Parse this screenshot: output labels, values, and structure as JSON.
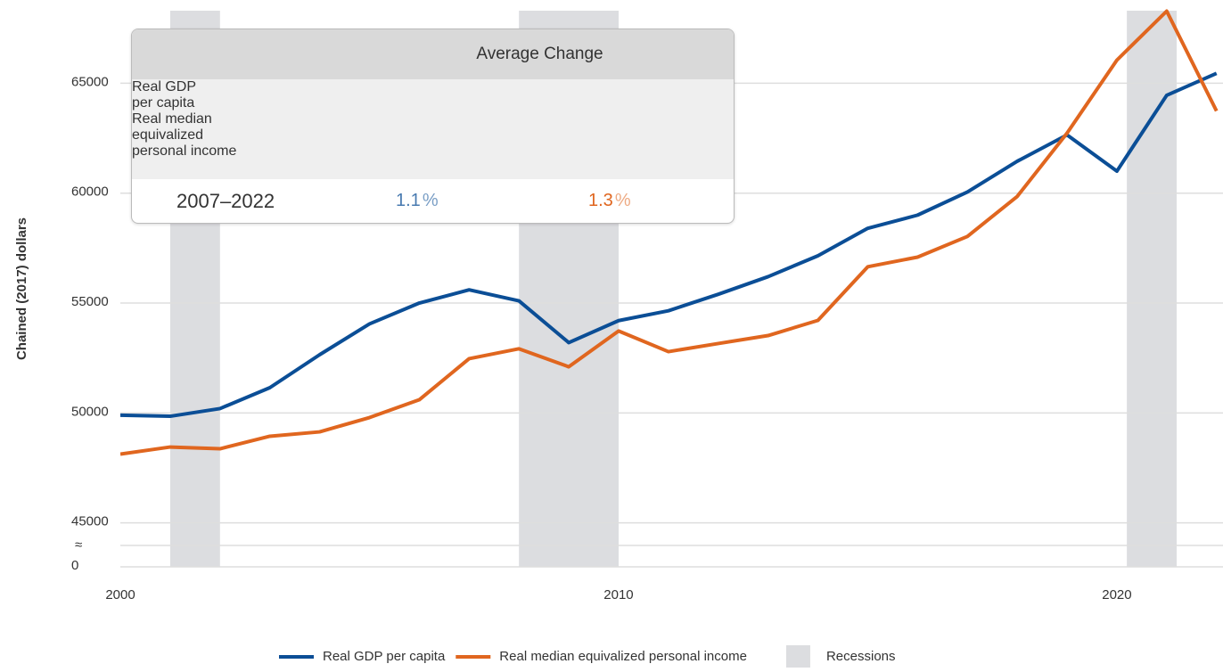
{
  "chart_data": {
    "type": "line",
    "y_label": "Chained (2017) dollars",
    "x": [
      2000,
      2001,
      2002,
      2003,
      2004,
      2005,
      2006,
      2007,
      2008,
      2009,
      2010,
      2011,
      2012,
      2013,
      2014,
      2015,
      2016,
      2017,
      2018,
      2019,
      2020,
      2021,
      2022
    ],
    "series": [
      {
        "name": "Real GDP per capita",
        "color": "#0b4e96",
        "values": [
          49900,
          49850,
          50200,
          51150,
          52650,
          54050,
          55000,
          55600,
          55100,
          53200,
          54200,
          54650,
          55400,
          56200,
          57150,
          58400,
          59000,
          60050,
          61450,
          62650,
          61000,
          64450,
          65450
        ]
      },
      {
        "name": "Real median equivalized personal income",
        "color": "#e0661f",
        "values": [
          48130,
          48450,
          48370,
          48940,
          49140,
          49790,
          50600,
          52470,
          52920,
          52100,
          53730,
          52790,
          53160,
          53520,
          54210,
          56650,
          57090,
          58030,
          59850,
          62730,
          66050,
          68280,
          63740
        ]
      }
    ],
    "recessions": [
      [
        2001,
        2002
      ],
      [
        2008,
        2010
      ],
      [
        2020.2,
        2021.2
      ]
    ],
    "recession_label": "Recessions",
    "recession_color": "#dcdde0",
    "xlim": [
      2000,
      2022.13
    ],
    "xticks": [
      2000,
      2010,
      2020
    ],
    "ylim": [
      43000,
      68300
    ],
    "yticks": [
      {
        "value": 0,
        "label": "0"
      },
      45000,
      50000,
      55000,
      60000,
      65000
    ],
    "axis_break_label": "≈",
    "grid": true,
    "legend": "bottom"
  },
  "table": {
    "title": "Average Change",
    "columns": [
      [
        "Real GDP",
        "per capita"
      ],
      [
        "Real median",
        "equivalized",
        "personal income"
      ]
    ],
    "rows": [
      {
        "period": "2007–2022",
        "cells": [
          "1.1",
          "1.3"
        ]
      }
    ],
    "unit": "%"
  }
}
